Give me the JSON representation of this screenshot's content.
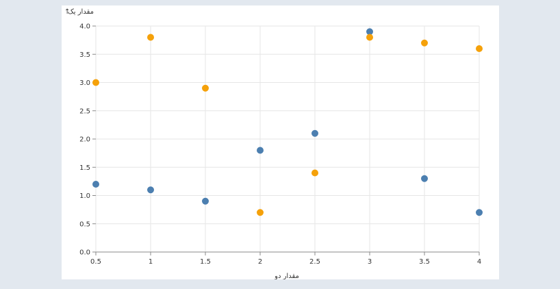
{
  "chart_data": {
    "type": "scatter",
    "xlabel": "مقدار دو",
    "ylabel": "مقدار یک",
    "xlim": [
      0.5,
      4
    ],
    "ylim": [
      0,
      4
    ],
    "x_ticks": [
      "0.5",
      "1",
      "1.5",
      "2",
      "2.5",
      "3",
      "3.5",
      "4"
    ],
    "y_ticks": [
      "0.0",
      "0.5",
      "1.0",
      "1.5",
      "2.0",
      "2.5",
      "3.0",
      "3.5",
      "4.0"
    ],
    "grid": true,
    "series": [
      {
        "color": "#4c7fb0",
        "points": [
          {
            "x": 0.5,
            "y": 1.2
          },
          {
            "x": 1,
            "y": 1.1
          },
          {
            "x": 1.5,
            "y": 0.9
          },
          {
            "x": 2,
            "y": 1.8
          },
          {
            "x": 2.5,
            "y": 2.1
          },
          {
            "x": 3,
            "y": 3.9
          },
          {
            "x": 3.5,
            "y": 1.3
          },
          {
            "x": 4,
            "y": 0.7
          }
        ]
      },
      {
        "color": "#f5a10a",
        "points": [
          {
            "x": 0.5,
            "y": 3.0
          },
          {
            "x": 1,
            "y": 3.8
          },
          {
            "x": 1.5,
            "y": 2.9
          },
          {
            "x": 2,
            "y": 0.7
          },
          {
            "x": 2.5,
            "y": 1.4
          },
          {
            "x": 3,
            "y": 3.8
          },
          {
            "x": 3.5,
            "y": 3.7
          },
          {
            "x": 4,
            "y": 3.6
          }
        ]
      }
    ]
  }
}
